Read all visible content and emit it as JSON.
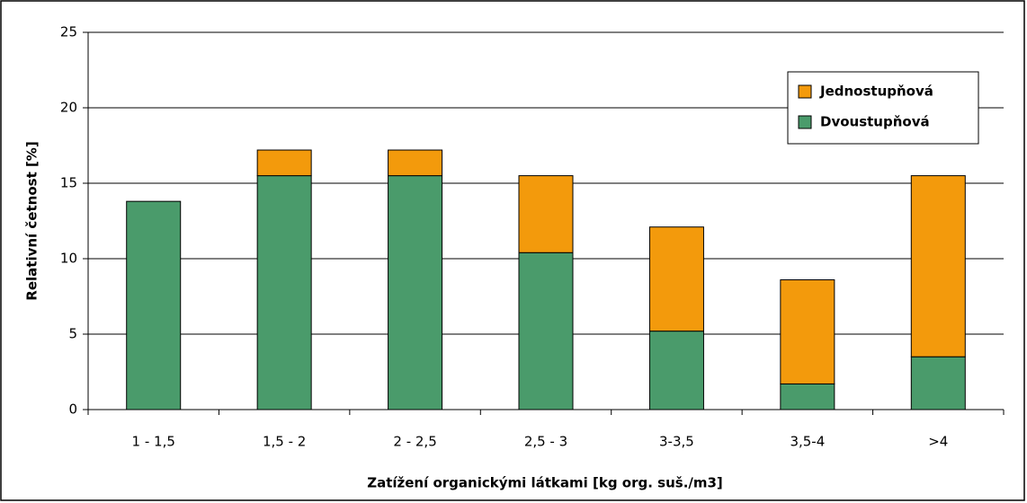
{
  "chart_data": {
    "type": "stacked_bar",
    "x_label": "Zatížení organickými látkami [kg org. suš./m3]",
    "y_label": "Relativní četnost [%]",
    "categories": [
      "1 - 1,5",
      "1,5 - 2",
      "2 - 2,5",
      "2,5 - 3",
      "3-3,5",
      "3,5-4",
      ">4"
    ],
    "series": [
      {
        "name": "Dvoustupňová",
        "color": "#4a9b6b",
        "values": [
          13.8,
          15.5,
          15.5,
          10.4,
          5.2,
          1.7,
          3.5
        ]
      },
      {
        "name": "Jednostupňová",
        "color": "#f39a0c",
        "values": [
          0,
          1.7,
          1.7,
          5.1,
          6.9,
          6.9,
          12.0
        ]
      }
    ],
    "ylim": [
      0,
      25
    ],
    "yticks": [
      0,
      5,
      10,
      15,
      20,
      25
    ],
    "grid": true,
    "legend": "top-right"
  }
}
